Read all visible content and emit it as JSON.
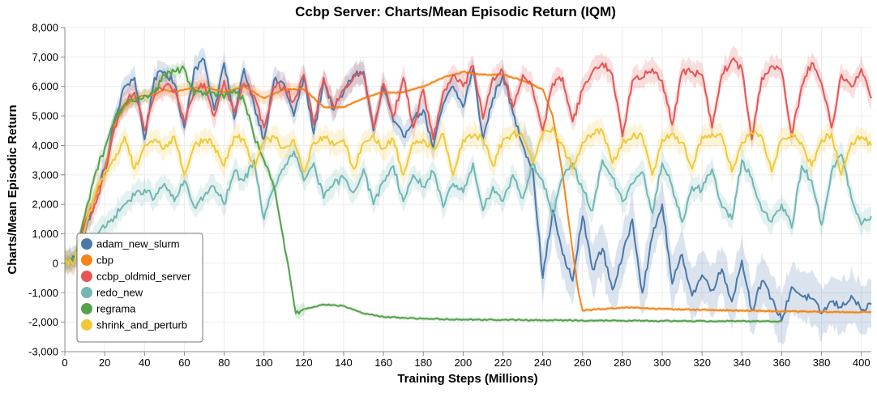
{
  "chart_data": {
    "type": "line",
    "title": "Ccbp Server: Charts/Mean Episodic Return (IQM)",
    "xlabel": "Training Steps (Millions)",
    "ylabel": "Charts/Mean Episodic Return",
    "xlim": [
      0,
      405
    ],
    "ylim": [
      -3000,
      8000
    ],
    "x_ticks": [
      0,
      20,
      40,
      60,
      80,
      100,
      120,
      140,
      160,
      180,
      200,
      220,
      240,
      260,
      280,
      300,
      320,
      340,
      360,
      380,
      400
    ],
    "y_ticks": [
      -3000,
      -2000,
      -1000,
      0,
      1000,
      2000,
      3000,
      4000,
      5000,
      6000,
      7000,
      8000
    ],
    "y_tick_labels": [
      "-3,000",
      "-2,000",
      "-1,000",
      "0",
      "1,000",
      "2,000",
      "3,000",
      "4,000",
      "5,000",
      "6,000",
      "7,000",
      "8,000"
    ],
    "grid": true,
    "shaded_confidence_bands": true,
    "legend_position": "bottom-left",
    "series": [
      {
        "name": "adam_new_slurm",
        "color": "#4c78a8",
        "x": [
          0,
          5,
          10,
          15,
          20,
          25,
          30,
          35,
          40,
          45,
          50,
          55,
          60,
          65,
          70,
          75,
          80,
          85,
          90,
          95,
          100,
          105,
          110,
          115,
          120,
          125,
          130,
          135,
          140,
          145,
          150,
          155,
          160,
          165,
          170,
          175,
          180,
          185,
          190,
          195,
          200,
          205,
          210,
          215,
          220,
          225,
          230,
          235,
          240,
          245,
          250,
          255,
          260,
          265,
          270,
          275,
          280,
          285,
          290,
          295,
          300,
          305,
          310,
          315,
          320,
          325,
          330,
          335,
          340,
          345,
          350,
          355,
          360,
          365,
          370,
          375,
          380,
          385,
          390,
          395,
          400,
          405
        ],
        "y": [
          0,
          200,
          1000,
          2200,
          3200,
          4800,
          6000,
          6300,
          4200,
          6300,
          6500,
          6100,
          4600,
          6600,
          6900,
          5200,
          6800,
          4900,
          6600,
          5400,
          4200,
          6200,
          6100,
          5000,
          6300,
          4400,
          6200,
          5200,
          5800,
          6400,
          6500,
          4500,
          6000,
          4800,
          4300,
          4900,
          5200,
          3900,
          5400,
          6000,
          5300,
          6600,
          4200,
          5600,
          6400,
          5100,
          4000,
          3200,
          -500,
          1800,
          300,
          -600,
          1600,
          -200,
          500,
          -900,
          200,
          1500,
          -1000,
          900,
          2000,
          -700,
          300,
          -1100,
          -400,
          -900,
          -200,
          -1300,
          100,
          -1600,
          -600,
          -1200,
          -1950,
          -800,
          -1100,
          -1200,
          -1700,
          -1300,
          -1500,
          -1100,
          -1600,
          -1400
        ]
      },
      {
        "name": "cbp",
        "color": "#f58518",
        "x": [
          0,
          5,
          10,
          15,
          20,
          25,
          30,
          35,
          40,
          45,
          50,
          55,
          60,
          70,
          80,
          90,
          100,
          110,
          120,
          130,
          140,
          150,
          160,
          170,
          180,
          190,
          200,
          210,
          220,
          230,
          240,
          245,
          250,
          255,
          258,
          260,
          270,
          280,
          290,
          300,
          320,
          340,
          360,
          380,
          400,
          405
        ],
        "y": [
          0,
          100,
          1400,
          2200,
          3100,
          4700,
          5300,
          5600,
          5700,
          5700,
          5900,
          5800,
          5900,
          6000,
          5800,
          6000,
          5600,
          5900,
          5900,
          5300,
          5300,
          5600,
          5800,
          5800,
          6000,
          6300,
          6500,
          6400,
          6400,
          6200,
          5900,
          5000,
          3000,
          400,
          -1000,
          -1600,
          -1550,
          -1500,
          -1520,
          -1550,
          -1580,
          -1610,
          -1630,
          -1650,
          -1660,
          -1660
        ]
      },
      {
        "name": "ccbp_oldmid_server",
        "color": "#e45756",
        "x": [
          0,
          5,
          10,
          15,
          20,
          25,
          30,
          35,
          40,
          45,
          50,
          55,
          60,
          65,
          70,
          75,
          80,
          85,
          90,
          95,
          100,
          105,
          110,
          115,
          120,
          125,
          130,
          135,
          140,
          145,
          150,
          155,
          160,
          165,
          170,
          175,
          180,
          185,
          190,
          195,
          200,
          205,
          210,
          215,
          220,
          225,
          230,
          235,
          240,
          245,
          250,
          255,
          260,
          265,
          270,
          275,
          280,
          285,
          290,
          295,
          300,
          305,
          310,
          315,
          320,
          325,
          330,
          335,
          340,
          345,
          350,
          355,
          360,
          365,
          370,
          375,
          380,
          385,
          390,
          395,
          400,
          405
        ],
        "y": [
          0,
          100,
          1300,
          2000,
          3000,
          4600,
          5400,
          5800,
          4500,
          5700,
          6000,
          5900,
          4800,
          5900,
          6100,
          5000,
          6200,
          5100,
          6100,
          5700,
          4600,
          6000,
          6000,
          5500,
          6400,
          4700,
          6300,
          5300,
          5900,
          6300,
          6400,
          4600,
          6100,
          5000,
          6300,
          4600,
          5900,
          4200,
          5800,
          6400,
          6000,
          6700,
          4900,
          6300,
          6500,
          5300,
          6400,
          5900,
          4500,
          6100,
          6300,
          4800,
          5900,
          6500,
          6800,
          6400,
          4300,
          6200,
          6300,
          6600,
          6200,
          4700,
          6500,
          6500,
          6400,
          4600,
          6400,
          6900,
          6600,
          4200,
          6300,
          6700,
          6500,
          4300,
          6000,
          6800,
          6100,
          4600,
          6400,
          6000,
          6600,
          5600
        ]
      },
      {
        "name": "redo_new",
        "color": "#72b7b2",
        "x": [
          0,
          5,
          10,
          15,
          20,
          25,
          30,
          35,
          40,
          45,
          50,
          55,
          60,
          65,
          70,
          75,
          80,
          85,
          90,
          95,
          100,
          105,
          110,
          115,
          120,
          125,
          130,
          135,
          140,
          145,
          150,
          155,
          160,
          165,
          170,
          175,
          180,
          185,
          190,
          195,
          200,
          205,
          210,
          215,
          220,
          225,
          230,
          235,
          240,
          245,
          250,
          255,
          260,
          265,
          270,
          275,
          280,
          285,
          290,
          295,
          300,
          305,
          310,
          315,
          320,
          325,
          330,
          335,
          340,
          345,
          350,
          355,
          360,
          365,
          370,
          375,
          380,
          385,
          390,
          395,
          400,
          405
        ],
        "y": [
          0,
          100,
          400,
          1000,
          1200,
          1600,
          2000,
          2300,
          2500,
          2200,
          2700,
          2100,
          2800,
          1900,
          2300,
          2600,
          2000,
          3100,
          2800,
          3500,
          1500,
          2600,
          3200,
          3800,
          2800,
          3400,
          2200,
          2700,
          2900,
          2400,
          3200,
          2000,
          2800,
          3300,
          2100,
          3000,
          2600,
          3100,
          1900,
          2700,
          2400,
          3400,
          1800,
          2600,
          2100,
          3000,
          2200,
          3400,
          2800,
          1600,
          2900,
          3400,
          2500,
          1800,
          3500,
          2900,
          2100,
          2700,
          3100,
          1700,
          3400,
          2600,
          1400,
          2600,
          2500,
          3200,
          1900,
          1500,
          3500,
          2900,
          1800,
          1400,
          2000,
          1200,
          3300,
          2800,
          1300,
          3100,
          3700,
          2200,
          1300,
          1600
        ]
      },
      {
        "name": "regrama",
        "color": "#54a24b",
        "x": [
          0,
          5,
          10,
          15,
          20,
          25,
          30,
          35,
          40,
          45,
          50,
          55,
          60,
          65,
          70,
          75,
          80,
          85,
          90,
          95,
          100,
          105,
          108,
          112,
          116,
          120,
          130,
          140,
          150,
          160,
          180,
          200,
          220,
          240,
          260,
          280,
          300,
          320,
          340,
          360
        ],
        "y": [
          0,
          150,
          1600,
          3000,
          3900,
          4900,
          5400,
          5500,
          5700,
          5800,
          6400,
          6500,
          6600,
          5700,
          5800,
          5800,
          5600,
          5900,
          5500,
          4300,
          3500,
          2600,
          1500,
          0,
          -1700,
          -1550,
          -1400,
          -1450,
          -1700,
          -1820,
          -1880,
          -1910,
          -1920,
          -1930,
          -1940,
          -1950,
          -1955,
          -1960,
          -1960,
          -1970
        ]
      },
      {
        "name": "shrink_and_perturb",
        "color": "#eeca3b",
        "x": [
          0,
          5,
          10,
          15,
          20,
          25,
          30,
          35,
          40,
          45,
          50,
          55,
          60,
          65,
          70,
          75,
          80,
          85,
          90,
          95,
          100,
          105,
          110,
          115,
          120,
          125,
          130,
          135,
          140,
          145,
          150,
          155,
          160,
          165,
          170,
          175,
          180,
          185,
          190,
          195,
          200,
          205,
          210,
          215,
          220,
          225,
          230,
          235,
          240,
          245,
          250,
          255,
          260,
          265,
          270,
          275,
          280,
          285,
          290,
          295,
          300,
          305,
          310,
          315,
          320,
          325,
          330,
          335,
          340,
          345,
          350,
          355,
          360,
          365,
          370,
          375,
          380,
          385,
          390,
          395,
          400,
          405
        ],
        "y": [
          0,
          100,
          1100,
          2300,
          3100,
          3500,
          4300,
          3200,
          4000,
          4200,
          3900,
          4300,
          3000,
          4000,
          4200,
          4000,
          3300,
          4300,
          4200,
          3300,
          4100,
          4300,
          3900,
          4200,
          3100,
          4100,
          4300,
          4000,
          4200,
          3200,
          4100,
          4300,
          3900,
          4200,
          3000,
          4100,
          4200,
          3900,
          4400,
          3000,
          4200,
          4300,
          4200,
          3300,
          4200,
          4400,
          4300,
          3400,
          4400,
          4600,
          4000,
          3200,
          4100,
          4400,
          4500,
          3400,
          4100,
          4300,
          4300,
          3000,
          4200,
          4400,
          4100,
          3200,
          4300,
          4400,
          4300,
          3100,
          4100,
          4400,
          4300,
          3100,
          4200,
          4400,
          4100,
          3300,
          4200,
          4400,
          3000,
          4100,
          4300,
          4000
        ]
      }
    ]
  }
}
